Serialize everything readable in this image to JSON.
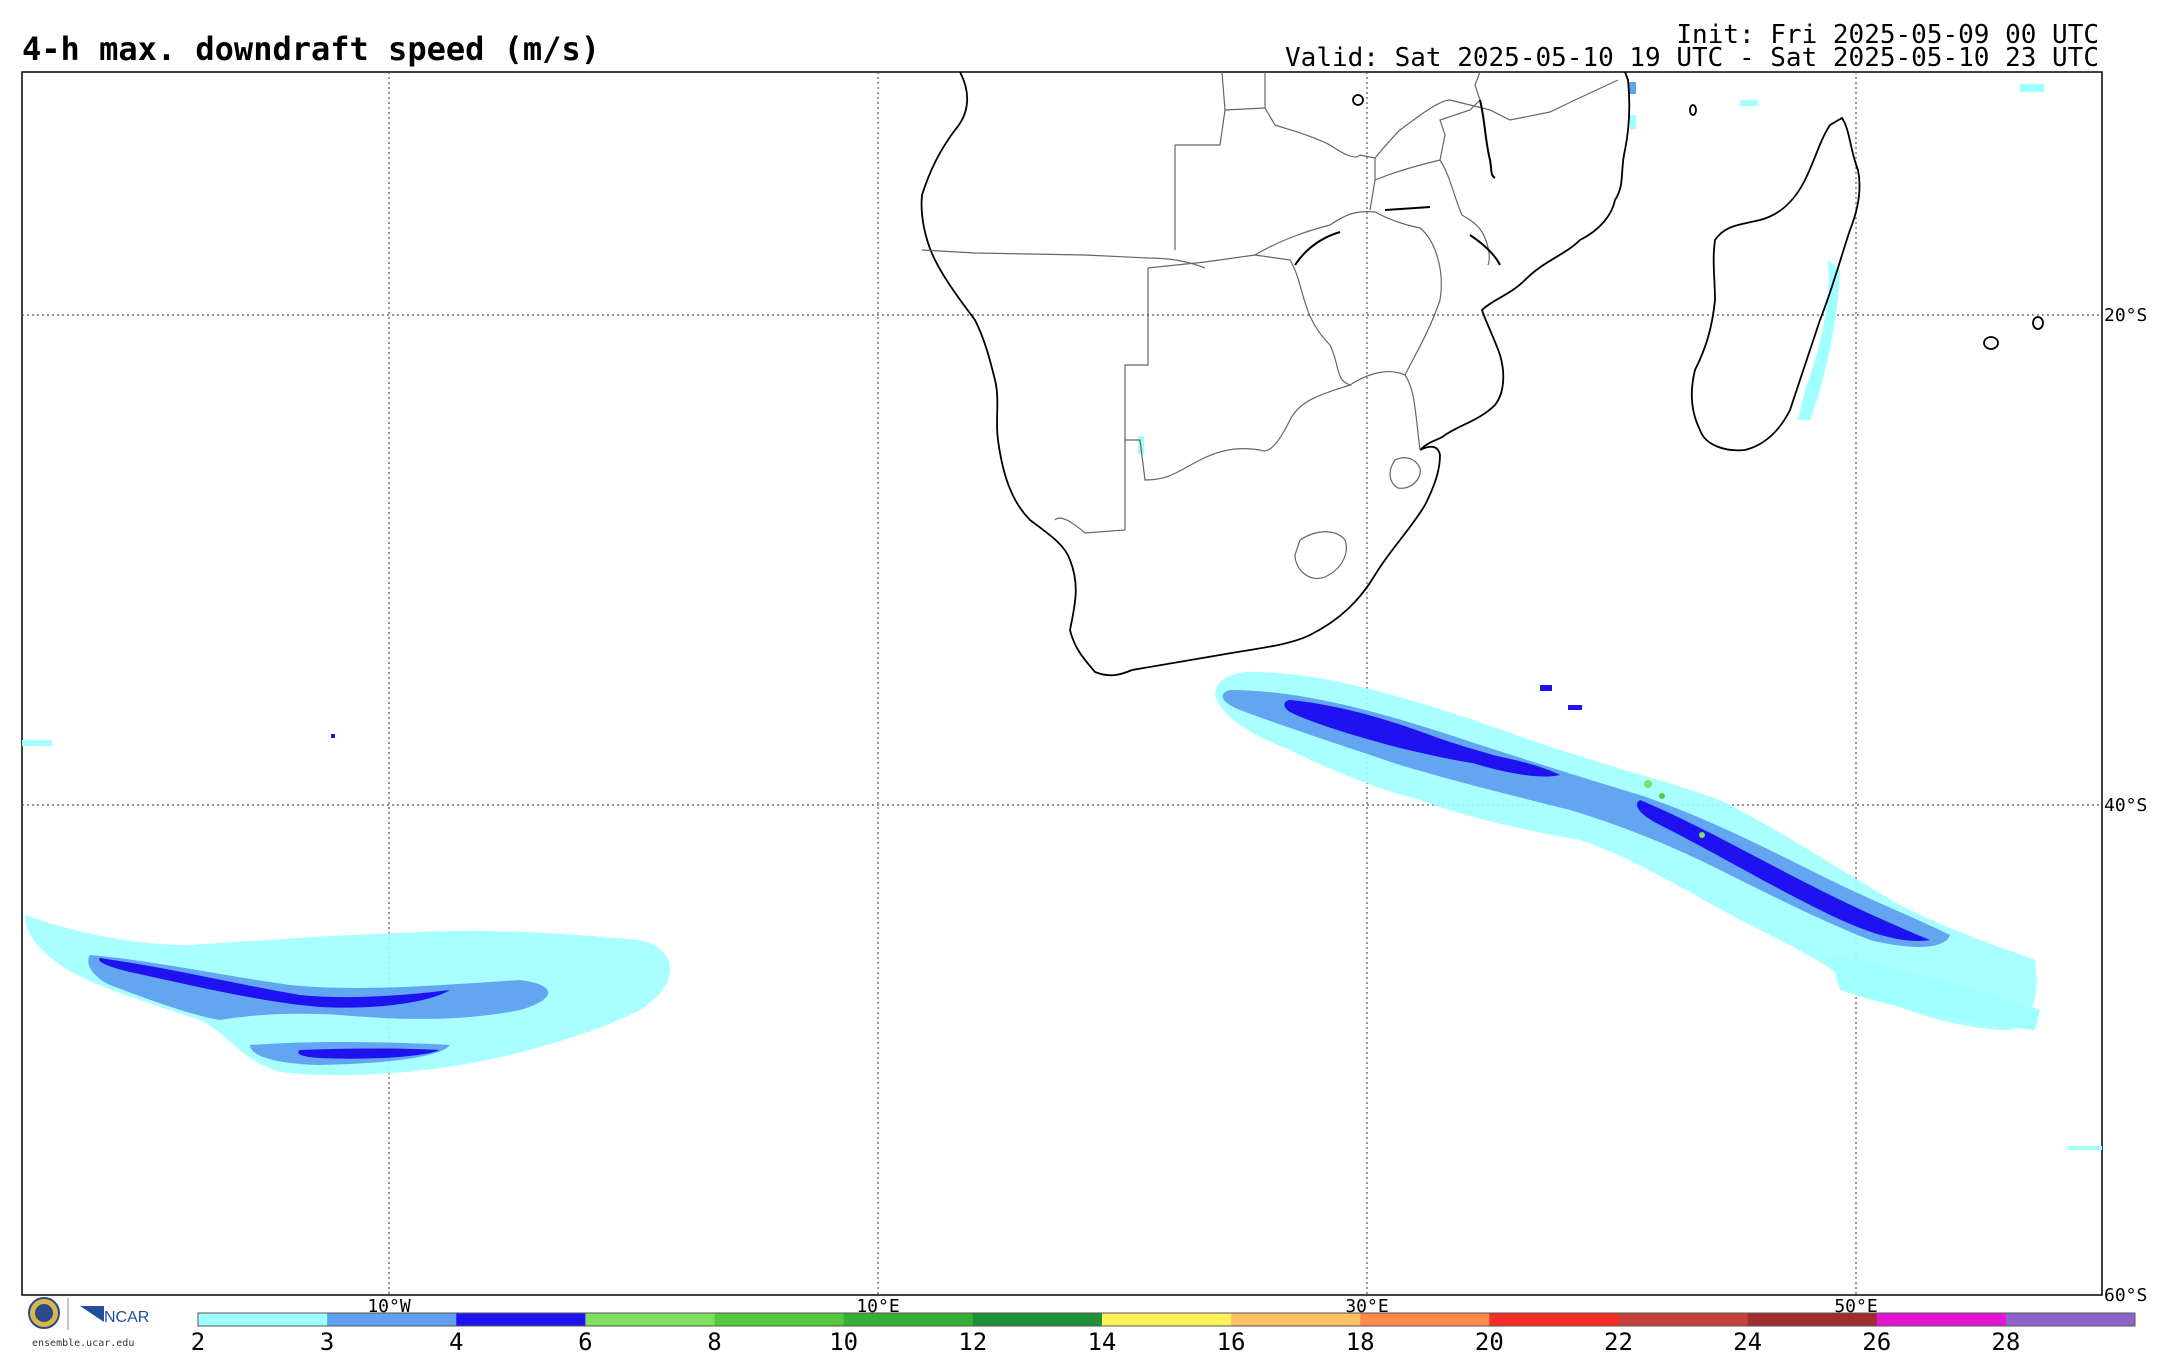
{
  "header": {
    "title": "4-h max. downdraft speed (m/s)",
    "init": "Init: Fri 2025-05-09 00 UTC",
    "valid": "Valid: Sat 2025-05-10 19 UTC - Sat 2025-05-10 23 UTC"
  },
  "map": {
    "lon_labels": [
      "10°W",
      "10°E",
      "30°E",
      "50°E"
    ],
    "lat_labels": [
      "20°S",
      "40°S",
      "60°S"
    ],
    "extent": {
      "lon": [
        -25,
        60
      ],
      "lat": [
        -10,
        -60
      ]
    }
  },
  "colorbar": {
    "ticks": [
      "2",
      "3",
      "4",
      "6",
      "8",
      "10",
      "12",
      "14",
      "16",
      "18",
      "20",
      "22",
      "24",
      "26",
      "28"
    ],
    "colors": [
      "#a0ffff",
      "#5fa0f0",
      "#1e12f0",
      "#80e060",
      "#55c840",
      "#35b035",
      "#1e9038",
      "#fff15a",
      "#ffc262",
      "#ff8a4a",
      "#f52d27",
      "#c8403c",
      "#a02d2d",
      "#e314d4",
      "#8c64c8"
    ]
  },
  "logo": {
    "org": "NCAR",
    "url": "ensemble.ucar.edu"
  }
}
